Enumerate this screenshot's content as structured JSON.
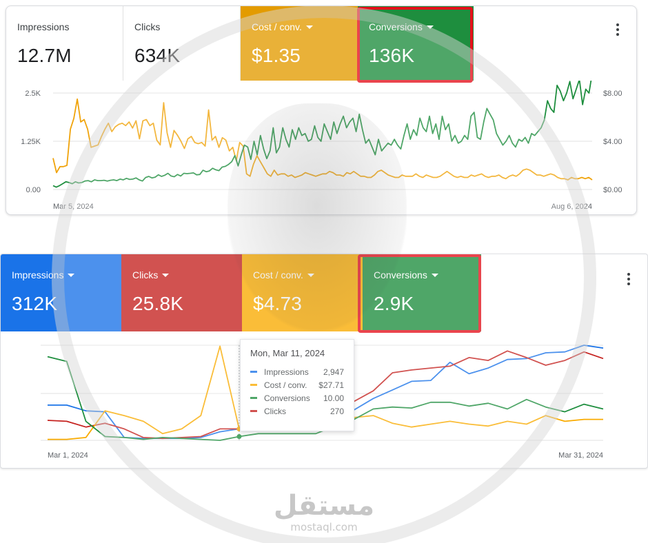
{
  "panel1": {
    "cards": [
      {
        "label": "Impressions",
        "value": "12.7M"
      },
      {
        "label": "Clicks",
        "value": "634K"
      },
      {
        "label": "Cost / conv.",
        "value": "$1.35"
      },
      {
        "label": "Conversions",
        "value": "136K"
      }
    ],
    "colors": {
      "cost": "#e39b00",
      "conversions": "#1e8e3e"
    }
  },
  "panel2": {
    "cards": [
      {
        "label": "Impressions",
        "value": "312K"
      },
      {
        "label": "Clicks",
        "value": "25.8K"
      },
      {
        "label": "Cost / conv.",
        "value": "$4.73"
      },
      {
        "label": "Conversions",
        "value": "2.9K"
      }
    ],
    "colors": {
      "impressions": "#1a73e8",
      "clicks": "#c5221f",
      "cost": "#f9ab00",
      "conversions": "#1e8e3e"
    },
    "tooltip": {
      "title": "Mon, Mar 11, 2024",
      "rows": [
        {
          "name": "Impressions",
          "value": "2,947",
          "color": "#1a73e8"
        },
        {
          "name": "Cost / conv.",
          "value": "$27.71",
          "color": "#f9ab00"
        },
        {
          "name": "Conversions",
          "value": "10.00",
          "color": "#1e8e3e"
        },
        {
          "name": "Clicks",
          "value": "270",
          "color": "#c5221f"
        }
      ]
    }
  },
  "watermark": {
    "arabic": "مستقل",
    "latin": "mostaql.com"
  },
  "chart_data": [
    {
      "type": "line",
      "title": "",
      "x_start_label": "Mar 5, 2024",
      "x_end_label": "Aug 6, 2024",
      "y_left_ticks": [
        "2.5K",
        "1.25K",
        "0.00"
      ],
      "y_right_ticks": [
        "$8.00",
        "$4.00",
        "$0.00"
      ],
      "ylim_left": [
        0,
        2500
      ],
      "ylim_right": [
        0,
        8
      ],
      "series": [
        {
          "name": "Cost / conv.",
          "axis": "right",
          "color": "#f0a30a",
          "values": [
            2.6,
            1.4,
            1.9,
            1.9,
            2.0,
            5.0,
            5.9,
            7.5,
            5.6,
            5.8,
            5.0,
            3.5,
            3.6,
            3.7,
            4.4,
            5.0,
            5.5,
            4.8,
            5.2,
            5.4,
            5.5,
            5.3,
            5.6,
            5.1,
            5.7,
            4.2,
            5.7,
            5.8,
            5.3,
            5.5,
            4.1,
            3.7,
            7.2,
            4.7,
            3.5,
            4.9,
            4.5,
            4.0,
            3.4,
            4.2,
            4.4,
            3.9,
            3.8,
            3.9,
            3.6,
            6.6,
            4.1,
            4.4,
            3.5,
            4.3,
            4.1,
            3.2,
            3.5,
            2.4,
            3.9,
            3.6,
            1.3,
            1.1,
            2.1,
            2.8,
            2.3,
            1.8,
            1.3,
            1.1,
            1.6,
            1.2,
            1.3,
            1.3,
            1.1,
            1.2,
            1.0,
            1.1,
            1.2,
            1.4,
            1.3,
            1.2,
            1.1,
            1.2,
            1.3,
            1.3,
            1.5,
            1.4,
            1.2,
            1.2,
            1.1,
            1.4,
            1.3,
            1.5,
            1.3,
            1.1,
            1.1,
            1.0,
            1.0,
            1.2,
            1.5,
            1.6,
            1.4,
            1.2,
            1.1,
            1.0,
            1.0,
            1.2,
            1.1,
            1.1,
            1.1,
            1.3,
            1.1,
            1.0,
            1.2,
            1.1,
            1.0,
            1.0,
            1.1,
            1.3,
            1.5,
            1.3,
            1.1,
            1.0,
            1.1,
            1.0,
            1.0,
            1.2,
            1.1,
            1.2,
            1.3,
            1.1,
            1.0,
            1.1,
            1.1,
            1.2,
            1.0,
            0.9,
            1.1,
            1.2,
            1.1,
            1.3,
            1.6,
            1.7,
            1.6,
            1.4,
            1.2,
            1.2,
            1.1,
            1.2,
            1.3,
            1.2,
            1.0,
            0.9,
            0.9,
            0.8,
            1.0,
            0.9,
            0.9,
            1.0,
            0.9,
            1.0,
            0.8
          ]
        },
        {
          "name": "Conversions",
          "axis": "left",
          "color": "#1e8e3e",
          "values": [
            100,
            60,
            100,
            150,
            200,
            180,
            150,
            200,
            170,
            180,
            220,
            230,
            200,
            250,
            230,
            230,
            240,
            220,
            240,
            250,
            230,
            270,
            250,
            290,
            260,
            270,
            300,
            250,
            220,
            310,
            340,
            300,
            320,
            380,
            340,
            370,
            420,
            350,
            330,
            390,
            350,
            420,
            410,
            420,
            430,
            380,
            390,
            500,
            460,
            480,
            550,
            510,
            490,
            580,
            600,
            650,
            720,
            880,
            610,
            900,
            1150,
            1100,
            780,
            1250,
            900,
            1400,
            1050,
            800,
            1000,
            1600,
            950,
            1100,
            1600,
            1300,
            1100,
            1550,
            1300,
            1600,
            1400,
            1450,
            1250,
            1300,
            1650,
            1350,
            1250,
            1700,
            1500,
            1300,
            1750,
            1450,
            1700,
            1900,
            1600,
            1750,
            1850,
            1500,
            1950,
            1550,
            1200,
            1300,
            1100,
            900,
            1300,
            1000,
            1100,
            1200,
            1150,
            1300,
            1150,
            1050,
            1400,
            1700,
            1300,
            1550,
            1400,
            1850,
            1600,
            1500,
            1900,
            1450,
            1700,
            1300,
            1900,
            1550,
            1700,
            1250,
            1400,
            1200,
            1250,
            1400,
            1300,
            1900,
            2000,
            1350,
            1300,
            1750,
            2100,
            1950,
            1800,
            1450,
            1300,
            1150,
            1250,
            1400,
            1200,
            1100,
            1300,
            1250,
            1350,
            1200,
            1450,
            1400,
            1500,
            1600,
            1800,
            2300,
            2100,
            2000,
            2700,
            2550,
            2300,
            2500,
            2800,
            2350,
            2600,
            2850,
            2200,
            2600,
            2500,
            3000
          ]
        }
      ]
    },
    {
      "type": "line",
      "title": "",
      "x_start_label": "Mar 1, 2024",
      "x_end_label": "Mar 31, 2024",
      "series": [
        {
          "name": "Impressions",
          "color": "#1a73e8",
          "values": [
            0.37,
            0.37,
            0.31,
            0.3,
            0.03,
            0.02,
            0.02,
            0.02,
            0.03,
            0.09,
            0.12,
            0.13,
            0.14,
            0.22,
            0.21,
            0.25,
            0.32,
            0.44,
            0.53,
            0.62,
            0.63,
            0.82,
            0.7,
            0.76,
            0.85,
            0.86,
            0.92,
            0.93,
            1.0,
            0.97
          ]
        },
        {
          "name": "Clicks",
          "color": "#c5221f",
          "values": [
            0.21,
            0.2,
            0.14,
            0.18,
            0.12,
            0.03,
            0.02,
            0.03,
            0.04,
            0.12,
            0.12,
            0.17,
            0.22,
            0.31,
            0.38,
            0.4,
            0.41,
            0.52,
            0.71,
            0.74,
            0.76,
            0.78,
            0.87,
            0.84,
            0.94,
            0.87,
            0.79,
            0.84,
            0.93,
            0.86
          ]
        },
        {
          "name": "Cost / conv.",
          "color": "#f9ab00",
          "values": [
            0.01,
            0.01,
            0.03,
            0.31,
            0.26,
            0.2,
            0.07,
            0.12,
            0.26,
            0.99,
            0.12,
            0.19,
            0.15,
            0.19,
            0.22,
            0.24,
            0.24,
            0.26,
            0.18,
            0.14,
            0.17,
            0.2,
            0.17,
            0.15,
            0.2,
            0.17,
            0.26,
            0.2,
            0.22,
            0.22
          ]
        },
        {
          "name": "Conversions",
          "color": "#1e8e3e",
          "values": [
            0.88,
            0.83,
            0.2,
            0.04,
            0.03,
            0.01,
            0.03,
            0.02,
            0.01,
            0.0,
            0.04,
            0.07,
            0.07,
            0.07,
            0.07,
            0.15,
            0.22,
            0.33,
            0.35,
            0.34,
            0.4,
            0.4,
            0.36,
            0.39,
            0.33,
            0.43,
            0.35,
            0.3,
            0.38,
            0.33
          ]
        }
      ]
    }
  ]
}
